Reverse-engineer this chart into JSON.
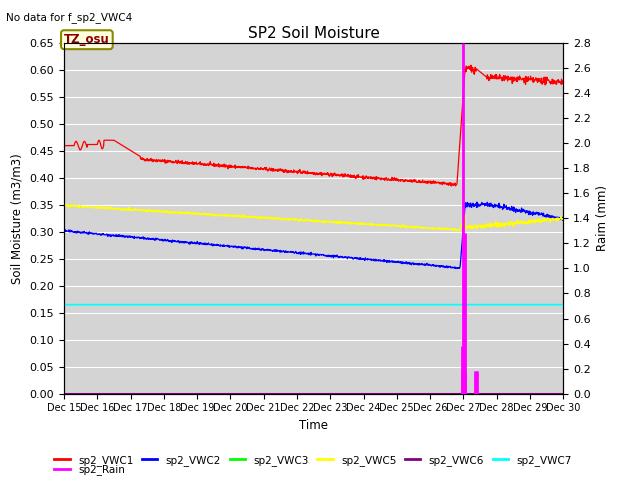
{
  "title": "SP2 Soil Moisture",
  "no_data_text": "No data for f_sp2_VWC4",
  "ylabel_left": "Soil Moisture (m3/m3)",
  "ylabel_right": "Raim (mm)",
  "xlabel": "Time",
  "ylim_left": [
    0.0,
    0.65
  ],
  "ylim_right": [
    0.0,
    2.8
  ],
  "bg_color": "#d4d4d4",
  "timezone_label": "TZ_osu",
  "legend_row1": [
    {
      "label": "sp2_VWC1",
      "color": "red"
    },
    {
      "label": "sp2_VWC2",
      "color": "blue"
    },
    {
      "label": "sp2_VWC3",
      "color": "#00ff00"
    },
    {
      "label": "sp2_VWC5",
      "color": "yellow"
    },
    {
      "label": "sp2_VWC6",
      "color": "purple"
    },
    {
      "label": "sp2_VWC7",
      "color": "cyan"
    }
  ],
  "legend_row2": [
    {
      "label": "sp2_Rain",
      "color": "magenta"
    }
  ],
  "vwc7_level": 0.165,
  "rain_spike_day": 12.0,
  "figsize": [
    6.4,
    4.8
  ],
  "dpi": 100
}
